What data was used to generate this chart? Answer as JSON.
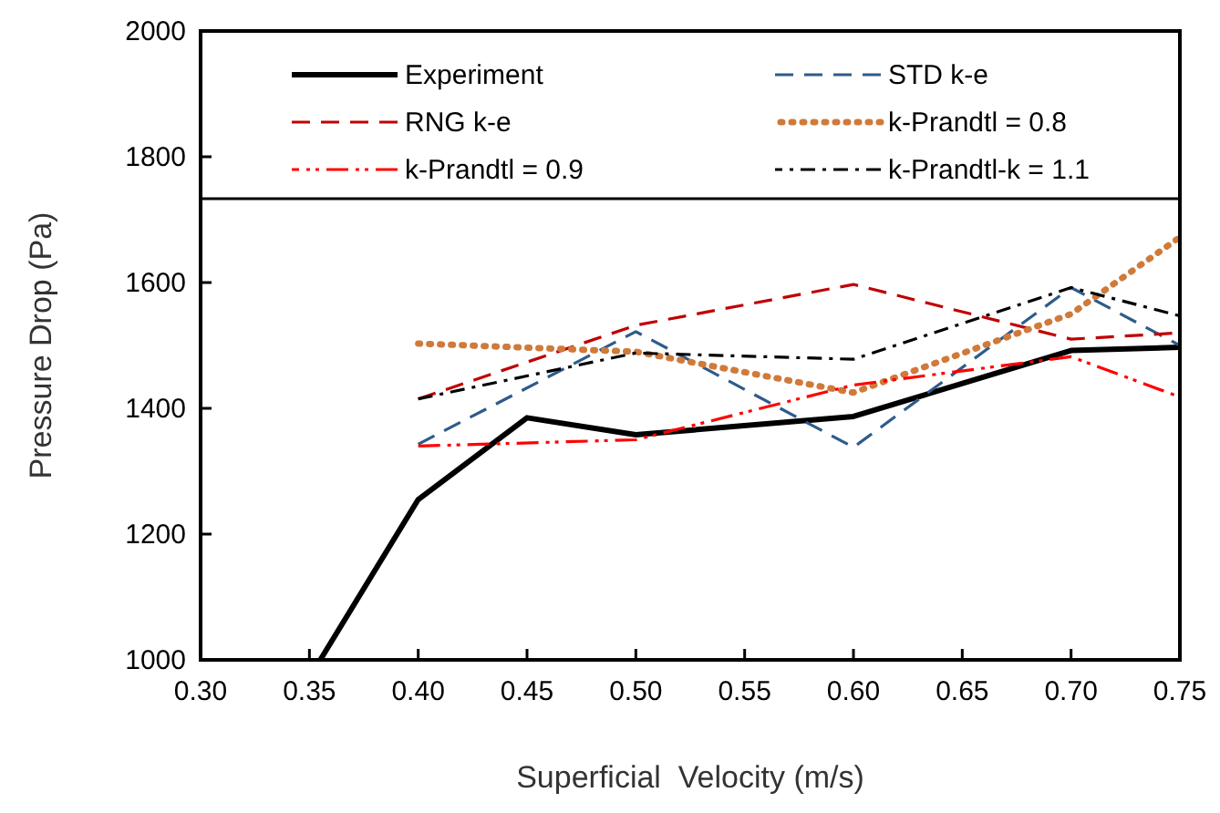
{
  "chart_data": {
    "type": "line",
    "xlabel": "Superficial  Velocity (m/s)",
    "ylabel": "Pressure Drop (Pa)",
    "xlim": [
      0.3,
      0.75
    ],
    "xticks": [
      {
        "value": 0.3,
        "label": "0.30"
      },
      {
        "value": 0.35,
        "label": "0.35"
      },
      {
        "value": 0.4,
        "label": "0.40"
      },
      {
        "value": 0.45,
        "label": "0.45"
      },
      {
        "value": 0.5,
        "label": "0.50"
      },
      {
        "value": 0.55,
        "label": "0.55"
      },
      {
        "value": 0.6,
        "label": "0.60"
      },
      {
        "value": 0.65,
        "label": "0.65"
      },
      {
        "value": 0.7,
        "label": "0.70"
      },
      {
        "value": 0.75,
        "label": "0.75"
      }
    ],
    "ylim": [
      1000,
      2000
    ],
    "yticks": [
      1000,
      1200,
      1400,
      1600,
      1800,
      2000
    ],
    "grid": false,
    "legend": "top",
    "marker": "none",
    "series": [
      {
        "name": "Experiment",
        "color": "#000000",
        "line_style": "solid",
        "x": [
          0.355,
          0.4,
          0.45,
          0.5,
          0.6,
          0.7,
          0.75
        ],
        "values": [
          1000,
          1255,
          1385,
          1358,
          1387,
          1492,
          1497
        ]
      },
      {
        "name": "STD k-e",
        "color": "#2e5b8a",
        "line_style": "dashed",
        "x": [
          0.4,
          0.5,
          0.6,
          0.7,
          0.75
        ],
        "values": [
          1343,
          1522,
          1338,
          1592,
          1500
        ]
      },
      {
        "name": "RNG k-e",
        "color": "#c00000",
        "line_style": "dashed",
        "x": [
          0.4,
          0.5,
          0.6,
          0.7,
          0.75
        ],
        "values": [
          1415,
          1532,
          1597,
          1510,
          1520
        ]
      },
      {
        "name": "k-Prandtl = 0.8",
        "color": "#d07a3a",
        "line_style": "dotted",
        "x": [
          0.4,
          0.5,
          0.6,
          0.7,
          0.75
        ],
        "values": [
          1503,
          1490,
          1425,
          1550,
          1672
        ]
      },
      {
        "name": "k-Prandtl = 0.9",
        "color": "#ff0000",
        "line_style": "dashdotdot",
        "x": [
          0.4,
          0.5,
          0.6,
          0.7,
          0.75
        ],
        "values": [
          1340,
          1350,
          1437,
          1482,
          1418
        ]
      },
      {
        "name": "k-Prandtl-k = 1.1",
        "color": "#000000",
        "line_style": "dashdot",
        "x": [
          0.4,
          0.5,
          0.6,
          0.7,
          0.75
        ],
        "values": [
          1415,
          1488,
          1478,
          1592,
          1547
        ]
      }
    ]
  }
}
